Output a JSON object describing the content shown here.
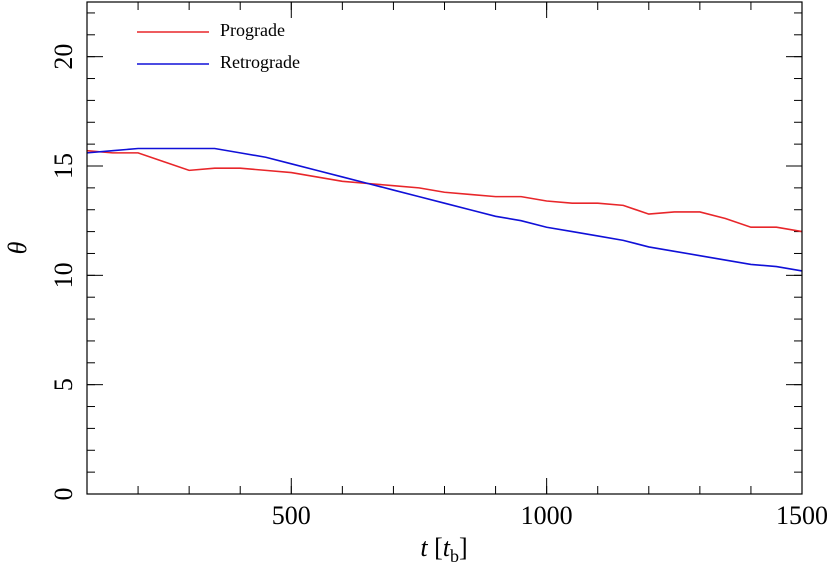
{
  "chart_data": {
    "type": "line",
    "xlabel": [
      "t",
      " [",
      "t",
      "b",
      "]"
    ],
    "ylabel": "θ",
    "x": [
      100,
      150,
      200,
      250,
      300,
      350,
      400,
      450,
      500,
      550,
      600,
      650,
      700,
      750,
      800,
      850,
      900,
      950,
      1000,
      1050,
      1100,
      1150,
      1200,
      1250,
      1300,
      1350,
      1400,
      1450,
      1500
    ],
    "series": [
      {
        "name": "Prograde",
        "color": "#e8262a",
        "values": [
          15.7,
          15.6,
          15.6,
          15.2,
          14.8,
          14.9,
          14.9,
          14.8,
          14.7,
          14.5,
          14.3,
          14.2,
          14.1,
          14.0,
          13.8,
          13.7,
          13.6,
          13.6,
          13.4,
          13.3,
          13.3,
          13.2,
          12.8,
          12.9,
          12.9,
          12.6,
          12.2,
          12.2,
          12.0
        ]
      },
      {
        "name": "Retrograde",
        "color": "#1010d8",
        "values": [
          15.6,
          15.7,
          15.8,
          15.8,
          15.8,
          15.8,
          15.6,
          15.4,
          15.1,
          14.8,
          14.5,
          14.2,
          13.9,
          13.6,
          13.3,
          13.0,
          12.7,
          12.5,
          12.2,
          12.0,
          11.8,
          11.6,
          11.3,
          11.1,
          10.9,
          10.7,
          10.5,
          10.4,
          10.2
        ]
      }
    ],
    "xlim": [
      100,
      1500
    ],
    "ylim": [
      0,
      22.5
    ],
    "xticks": [
      500,
      1000,
      1500
    ],
    "yticks": [
      0,
      5,
      10,
      15,
      20
    ],
    "xminor_step": 100,
    "yminor_step": 1,
    "legend": "upper left"
  }
}
